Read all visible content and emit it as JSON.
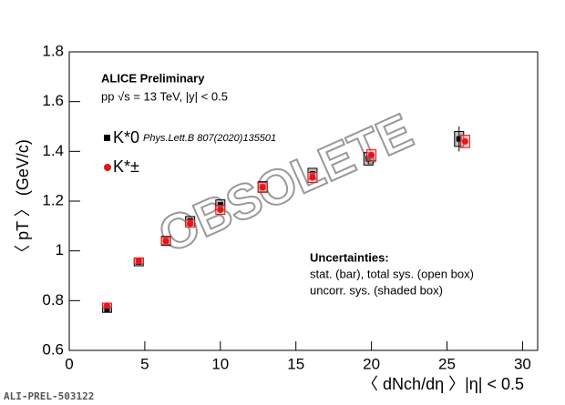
{
  "chart_data": {
    "type": "scatter",
    "title": "ALICE Preliminary",
    "subtitle": "pp √s = 13 TeV, |y| < 0.5",
    "x_label": "〈 dNch/dη 〉|η| < 0.5",
    "y_label": "〈 pT 〉 (GeV/c)",
    "reference": "Phys.Lett.B 807(2020)135501",
    "annotations": [
      "Uncertainties:",
      "stat. (bar), total sys. (open box)",
      "uncorr. sys. (shaded box)"
    ],
    "watermark": "OBSOLETE",
    "figure_id": "ALI-PREL-503122",
    "xlim": [
      0,
      31
    ],
    "xticks": [
      0,
      5,
      10,
      15,
      20,
      25,
      30
    ],
    "ylim": [
      0.6,
      1.8
    ],
    "yticks": [
      0.6,
      0.8,
      1,
      1.2,
      1.4,
      1.6,
      1.8
    ],
    "series": [
      {
        "name": "K*0",
        "color": "#000000",
        "marker": "square",
        "x": [
          2.5,
          4.6,
          6.4,
          8.0,
          10.0,
          12.8,
          16.1,
          19.8,
          25.8
        ],
        "values": [
          0.765,
          0.955,
          1.04,
          1.12,
          1.185,
          1.258,
          1.31,
          1.37,
          1.45
        ],
        "errors": [
          0.008,
          0.008,
          0.008,
          0.008,
          0.01,
          0.01,
          0.012,
          0.02,
          0.05
        ],
        "sys": [
          0.012,
          0.015,
          0.018,
          0.018,
          0.02,
          0.02,
          0.022,
          0.025,
          0.03
        ]
      },
      {
        "name": "K*±",
        "color": "#e8141a",
        "marker": "circle",
        "x": [
          2.5,
          4.6,
          6.4,
          8.0,
          10.0,
          12.8,
          16.1,
          20.0,
          26.2
        ],
        "values": [
          0.78,
          0.96,
          1.04,
          1.11,
          1.165,
          1.255,
          1.295,
          1.385,
          1.44
        ],
        "errors": [
          0.005,
          0.005,
          0.005,
          0.006,
          0.006,
          0.007,
          0.008,
          0.01,
          0.012
        ],
        "sys": [
          0.01,
          0.012,
          0.015,
          0.015,
          0.018,
          0.02,
          0.02,
          0.022,
          0.025
        ]
      }
    ]
  }
}
